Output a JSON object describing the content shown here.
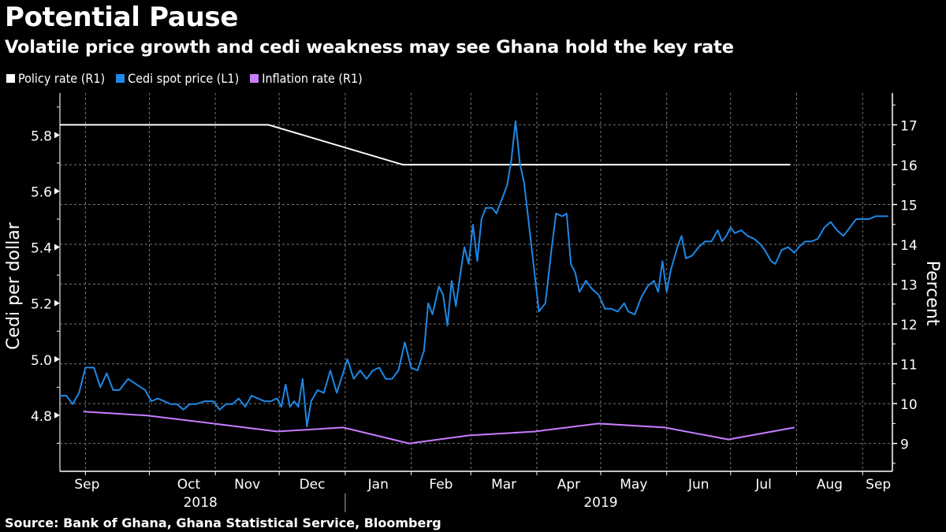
{
  "header": {
    "title": "Potential Pause",
    "subtitle": "Volatile price growth and cedi weakness may see Ghana hold the key rate"
  },
  "legend": [
    {
      "label": "Policy rate (R1)",
      "color": "#ffffff"
    },
    {
      "label": "Cedi spot price (L1)",
      "color": "#1e88e5"
    },
    {
      "label": "Inflation rate (R1)",
      "color": "#c77dff"
    }
  ],
  "footer": {
    "source": "Source: Bank of Ghana, Ghana Statistical Service, Bloomberg"
  },
  "chart_data": {
    "type": "line",
    "title": "Potential Pause",
    "subtitle": "Volatile price growth and cedi weakness may see Ghana hold the key rate",
    "x_range": [
      "2018-08-20",
      "2019-09-15"
    ],
    "x_ticks": [
      {
        "label": "Sep",
        "date": "2018-09-01"
      },
      {
        "label": "Oct",
        "date": "2018-10-01"
      },
      {
        "label": "Nov",
        "date": "2018-11-01"
      },
      {
        "label": "Dec",
        "date": "2018-12-01"
      },
      {
        "label": "Jan",
        "date": "2019-01-01"
      },
      {
        "label": "Feb",
        "date": "2019-02-01"
      },
      {
        "label": "Mar",
        "date": "2019-03-01"
      },
      {
        "label": "Apr",
        "date": "2019-04-01"
      },
      {
        "label": "May",
        "date": "2019-05-01"
      },
      {
        "label": "Jun",
        "date": "2019-06-01"
      },
      {
        "label": "Jul",
        "date": "2019-07-01"
      },
      {
        "label": "Aug",
        "date": "2019-08-01"
      },
      {
        "label": "Sep",
        "date": "2019-09-01"
      }
    ],
    "year_labels": [
      {
        "label": "2018",
        "date": "2018-10-25"
      },
      {
        "label": "2019",
        "date": "2019-05-01"
      }
    ],
    "left_axis": {
      "label": "Cedi per dollar",
      "ylim": [
        4.6,
        5.95
      ],
      "ticks": [
        "4.8",
        "5.0",
        "5.2",
        "5.4",
        "5.6",
        "5.8"
      ],
      "tick_values": [
        4.8,
        5.0,
        5.2,
        5.4,
        5.6,
        5.8
      ]
    },
    "right_axis": {
      "label": "Percent",
      "ylim": [
        8.3,
        17.8
      ],
      "ticks": [
        "9",
        "10",
        "11",
        "12",
        "13",
        "14",
        "15",
        "16",
        "17"
      ],
      "tick_values": [
        9,
        10,
        11,
        12,
        13,
        14,
        15,
        16,
        17
      ]
    },
    "grid": true,
    "legend_position": "top-left",
    "series": [
      {
        "name": "Policy rate (R1)",
        "axis": "right",
        "color": "#ffffff",
        "points": [
          [
            "2018-08-20",
            17
          ],
          [
            "2018-11-26",
            17
          ],
          [
            "2019-01-28",
            16
          ],
          [
            "2019-07-29",
            16
          ]
        ]
      },
      {
        "name": "Inflation rate (R1)",
        "axis": "right",
        "color": "#c77dff",
        "points": [
          [
            "2018-08-31",
            9.8
          ],
          [
            "2018-09-30",
            9.7
          ],
          [
            "2018-10-31",
            9.5
          ],
          [
            "2018-11-30",
            9.3
          ],
          [
            "2018-12-31",
            9.4
          ],
          [
            "2019-01-31",
            9.0
          ],
          [
            "2019-02-28",
            9.2
          ],
          [
            "2019-03-31",
            9.3
          ],
          [
            "2019-04-30",
            9.5
          ],
          [
            "2019-05-31",
            9.4
          ],
          [
            "2019-06-30",
            9.1
          ],
          [
            "2019-07-31",
            9.4
          ]
        ]
      },
      {
        "name": "Cedi spot price (L1)",
        "axis": "left",
        "color": "#1e88e5",
        "points": [
          [
            "2018-08-20",
            4.87
          ],
          [
            "2018-08-23",
            4.87
          ],
          [
            "2018-08-26",
            4.84
          ],
          [
            "2018-08-29",
            4.88
          ],
          [
            "2018-09-01",
            4.97
          ],
          [
            "2018-09-05",
            4.97
          ],
          [
            "2018-09-08",
            4.9
          ],
          [
            "2018-09-11",
            4.95
          ],
          [
            "2018-09-14",
            4.89
          ],
          [
            "2018-09-17",
            4.89
          ],
          [
            "2018-09-21",
            4.93
          ],
          [
            "2018-09-25",
            4.91
          ],
          [
            "2018-09-29",
            4.89
          ],
          [
            "2018-10-02",
            4.85
          ],
          [
            "2018-10-05",
            4.86
          ],
          [
            "2018-10-08",
            4.85
          ],
          [
            "2018-10-11",
            4.84
          ],
          [
            "2018-10-14",
            4.84
          ],
          [
            "2018-10-17",
            4.82
          ],
          [
            "2018-10-20",
            4.84
          ],
          [
            "2018-10-23",
            4.84
          ],
          [
            "2018-10-27",
            4.85
          ],
          [
            "2018-10-31",
            4.85
          ],
          [
            "2018-11-03",
            4.82
          ],
          [
            "2018-11-06",
            4.84
          ],
          [
            "2018-11-09",
            4.84
          ],
          [
            "2018-11-12",
            4.86
          ],
          [
            "2018-11-15",
            4.83
          ],
          [
            "2018-11-18",
            4.87
          ],
          [
            "2018-11-21",
            4.86
          ],
          [
            "2018-11-24",
            4.85
          ],
          [
            "2018-11-27",
            4.85
          ],
          [
            "2018-11-30",
            4.86
          ],
          [
            "2018-12-02",
            4.83
          ],
          [
            "2018-12-04",
            4.91
          ],
          [
            "2018-12-06",
            4.83
          ],
          [
            "2018-12-08",
            4.85
          ],
          [
            "2018-12-10",
            4.83
          ],
          [
            "2018-12-12",
            4.93
          ],
          [
            "2018-12-14",
            4.76
          ],
          [
            "2018-12-16",
            4.85
          ],
          [
            "2018-12-19",
            4.89
          ],
          [
            "2018-12-22",
            4.88
          ],
          [
            "2018-12-25",
            4.96
          ],
          [
            "2018-12-28",
            4.88
          ],
          [
            "2018-12-31",
            4.95
          ],
          [
            "2019-01-02",
            5.0
          ],
          [
            "2019-01-05",
            4.93
          ],
          [
            "2019-01-08",
            4.96
          ],
          [
            "2019-01-11",
            4.93
          ],
          [
            "2019-01-14",
            4.96
          ],
          [
            "2019-01-17",
            4.97
          ],
          [
            "2019-01-20",
            4.93
          ],
          [
            "2019-01-23",
            4.93
          ],
          [
            "2019-01-26",
            4.96
          ],
          [
            "2019-01-29",
            5.06
          ],
          [
            "2019-02-01",
            4.97
          ],
          [
            "2019-02-04",
            4.96
          ],
          [
            "2019-02-07",
            5.03
          ],
          [
            "2019-02-09",
            5.2
          ],
          [
            "2019-02-11",
            5.16
          ],
          [
            "2019-02-14",
            5.26
          ],
          [
            "2019-02-16",
            5.23
          ],
          [
            "2019-02-18",
            5.12
          ],
          [
            "2019-02-20",
            5.28
          ],
          [
            "2019-02-22",
            5.19
          ],
          [
            "2019-02-24",
            5.3
          ],
          [
            "2019-02-26",
            5.4
          ],
          [
            "2019-02-28",
            5.34
          ],
          [
            "2019-03-02",
            5.48
          ],
          [
            "2019-03-04",
            5.35
          ],
          [
            "2019-03-06",
            5.5
          ],
          [
            "2019-03-08",
            5.54
          ],
          [
            "2019-03-11",
            5.54
          ],
          [
            "2019-03-13",
            5.52
          ],
          [
            "2019-03-16",
            5.58
          ],
          [
            "2019-03-18",
            5.62
          ],
          [
            "2019-03-20",
            5.71
          ],
          [
            "2019-03-22",
            5.85
          ],
          [
            "2019-03-24",
            5.7
          ],
          [
            "2019-03-26",
            5.63
          ],
          [
            "2019-03-28",
            5.5
          ],
          [
            "2019-03-31",
            5.3
          ],
          [
            "2019-04-02",
            5.17
          ],
          [
            "2019-04-05",
            5.2
          ],
          [
            "2019-04-08",
            5.4
          ],
          [
            "2019-04-10",
            5.52
          ],
          [
            "2019-04-13",
            5.51
          ],
          [
            "2019-04-15",
            5.52
          ],
          [
            "2019-04-17",
            5.34
          ],
          [
            "2019-04-19",
            5.31
          ],
          [
            "2019-04-21",
            5.24
          ],
          [
            "2019-04-24",
            5.28
          ],
          [
            "2019-04-27",
            5.25
          ],
          [
            "2019-04-30",
            5.23
          ],
          [
            "2019-05-03",
            5.18
          ],
          [
            "2019-05-06",
            5.18
          ],
          [
            "2019-05-09",
            5.17
          ],
          [
            "2019-05-12",
            5.2
          ],
          [
            "2019-05-14",
            5.17
          ],
          [
            "2019-05-17",
            5.16
          ],
          [
            "2019-05-20",
            5.22
          ],
          [
            "2019-05-23",
            5.26
          ],
          [
            "2019-05-26",
            5.28
          ],
          [
            "2019-05-28",
            5.24
          ],
          [
            "2019-05-30",
            5.35
          ],
          [
            "2019-06-01",
            5.24
          ],
          [
            "2019-06-03",
            5.32
          ],
          [
            "2019-06-06",
            5.4
          ],
          [
            "2019-06-08",
            5.44
          ],
          [
            "2019-06-10",
            5.36
          ],
          [
            "2019-06-13",
            5.37
          ],
          [
            "2019-06-16",
            5.4
          ],
          [
            "2019-06-19",
            5.42
          ],
          [
            "2019-06-22",
            5.42
          ],
          [
            "2019-06-25",
            5.46
          ],
          [
            "2019-06-27",
            5.42
          ],
          [
            "2019-06-29",
            5.44
          ],
          [
            "2019-07-01",
            5.47
          ],
          [
            "2019-07-03",
            5.45
          ],
          [
            "2019-07-06",
            5.46
          ],
          [
            "2019-07-09",
            5.44
          ],
          [
            "2019-07-12",
            5.43
          ],
          [
            "2019-07-15",
            5.41
          ],
          [
            "2019-07-17",
            5.39
          ],
          [
            "2019-07-20",
            5.35
          ],
          [
            "2019-07-22",
            5.34
          ],
          [
            "2019-07-25",
            5.39
          ],
          [
            "2019-07-28",
            5.4
          ],
          [
            "2019-07-31",
            5.38
          ],
          [
            "2019-08-02",
            5.4
          ],
          [
            "2019-08-05",
            5.42
          ],
          [
            "2019-08-08",
            5.42
          ],
          [
            "2019-08-11",
            5.43
          ],
          [
            "2019-08-14",
            5.47
          ],
          [
            "2019-08-17",
            5.49
          ],
          [
            "2019-08-20",
            5.46
          ],
          [
            "2019-08-23",
            5.44
          ],
          [
            "2019-08-26",
            5.47
          ],
          [
            "2019-08-29",
            5.5
          ],
          [
            "2019-09-01",
            5.5
          ],
          [
            "2019-09-04",
            5.5
          ],
          [
            "2019-09-07",
            5.51
          ],
          [
            "2019-09-10",
            5.51
          ],
          [
            "2019-09-13",
            5.51
          ]
        ]
      }
    ]
  }
}
